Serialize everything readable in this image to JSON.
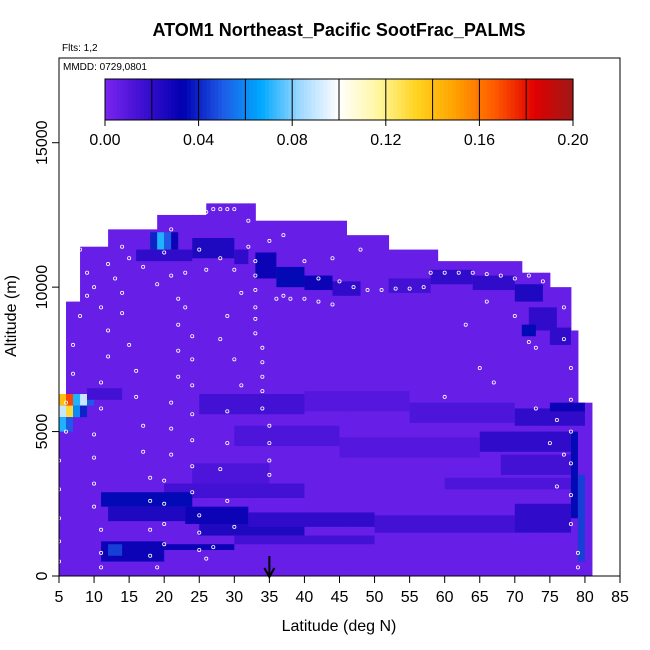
{
  "chart_data": {
    "type": "heatmap",
    "title": "ATOM1 Northeast_Pacific SootFrac_PALMS",
    "flights_label": "Flts: 1,2",
    "date_label": "MMDD: 0729,0801",
    "xlabel": "Latitude (deg N)",
    "ylabel": "Altitude (m)",
    "xlim": [
      5,
      85
    ],
    "ylim": [
      0,
      17500
    ],
    "x_ticks": [
      5,
      10,
      15,
      20,
      25,
      30,
      35,
      40,
      45,
      50,
      55,
      60,
      65,
      70,
      75,
      80,
      85
    ],
    "y_ticks": [
      0,
      5000,
      10000,
      15000
    ],
    "colorbar": {
      "range": [
        0,
        0.2
      ],
      "tick_values": [
        0,
        0.04,
        0.08,
        0.12,
        0.16,
        0.2
      ],
      "tick_labels": [
        "0.00",
        "0.04",
        "0.08",
        "0.12",
        "0.16",
        "0.20"
      ],
      "colors": [
        "#7a24f0",
        "#3c0fd0",
        "#0000b0",
        "#1e5ae6",
        "#00a8ff",
        "#9fd8ff",
        "#ffffff",
        "#fff7a0",
        "#ffd21e",
        "#ffa000",
        "#ff5a00",
        "#e00000",
        "#a01818"
      ],
      "legend_placement": "top"
    },
    "background_value": 0.005,
    "envelope": [
      [
        5,
        0,
        6000
      ],
      [
        6,
        0,
        9500
      ],
      [
        7,
        0,
        9500
      ],
      [
        8,
        0,
        11400
      ],
      [
        11,
        0,
        11400
      ],
      [
        12,
        0,
        12000
      ],
      [
        18,
        0,
        12000
      ],
      [
        19,
        0,
        12500
      ],
      [
        24,
        0,
        12500
      ],
      [
        25,
        0,
        12500
      ],
      [
        26,
        0,
        12900
      ],
      [
        32,
        0,
        12900
      ],
      [
        33,
        0,
        12300
      ],
      [
        45,
        0,
        12300
      ],
      [
        46,
        0,
        11800
      ],
      [
        51,
        0,
        11800
      ],
      [
        52,
        0,
        11300
      ],
      [
        58,
        0,
        11300
      ],
      [
        59,
        0,
        10900
      ],
      [
        70,
        0,
        10900
      ],
      [
        71,
        0,
        10500
      ],
      [
        74,
        0,
        10500
      ],
      [
        75,
        0,
        10000
      ],
      [
        77,
        0,
        10000
      ],
      [
        78,
        0,
        8500
      ],
      [
        79,
        0,
        6000
      ],
      [
        80,
        0,
        6000
      ]
    ],
    "cells": [
      [
        5,
        6,
        5900,
        6300,
        0.14
      ],
      [
        6,
        7,
        5900,
        6300,
        0.17
      ],
      [
        7,
        8,
        5900,
        6300,
        0.07
      ],
      [
        8,
        9,
        5900,
        6300,
        0.09
      ],
      [
        9,
        10,
        5900,
        6300,
        0.05
      ],
      [
        5,
        6,
        5500,
        5900,
        0.09
      ],
      [
        6,
        7,
        5500,
        5900,
        0.13
      ],
      [
        7,
        8,
        5500,
        5900,
        0.06
      ],
      [
        8,
        9,
        5500,
        5900,
        0.04
      ],
      [
        5,
        6,
        5000,
        5500,
        0.07
      ],
      [
        6,
        7,
        5000,
        5500,
        0.05
      ],
      [
        18,
        19,
        11300,
        11900,
        0.04
      ],
      [
        19,
        20,
        11300,
        11900,
        0.07
      ],
      [
        20,
        21,
        11300,
        11900,
        0.05
      ],
      [
        21,
        22,
        11300,
        11900,
        0.03
      ],
      [
        16,
        24,
        10900,
        11300,
        0.02
      ],
      [
        24,
        30,
        11000,
        11700,
        0.025
      ],
      [
        30,
        32,
        10800,
        11300,
        0.02
      ],
      [
        33,
        36,
        10300,
        11200,
        0.03
      ],
      [
        36,
        40,
        10000,
        10700,
        0.035
      ],
      [
        40,
        44,
        9900,
        10400,
        0.03
      ],
      [
        44,
        48,
        9700,
        10200,
        0.02
      ],
      [
        52,
        58,
        9800,
        10300,
        0.015
      ],
      [
        58,
        64,
        10100,
        10600,
        0.02
      ],
      [
        64,
        70,
        9900,
        10400,
        0.02
      ],
      [
        70,
        74,
        9500,
        10100,
        0.025
      ],
      [
        72,
        76,
        8500,
        9300,
        0.02
      ],
      [
        71,
        73,
        8300,
        8700,
        0.035
      ],
      [
        75,
        78,
        8000,
        8600,
        0.02
      ],
      [
        9,
        14,
        6100,
        6500,
        0.015
      ],
      [
        25,
        40,
        5600,
        6300,
        0.015
      ],
      [
        40,
        55,
        5700,
        6400,
        0.01
      ],
      [
        55,
        70,
        5300,
        6000,
        0.012
      ],
      [
        70,
        80,
        5200,
        5800,
        0.02
      ],
      [
        75,
        80,
        5700,
        6000,
        0.03
      ],
      [
        30,
        45,
        4500,
        5200,
        0.012
      ],
      [
        45,
        65,
        4100,
        4800,
        0.01
      ],
      [
        65,
        78,
        4300,
        5000,
        0.02
      ],
      [
        68,
        78,
        3500,
        4200,
        0.015
      ],
      [
        24,
        35,
        3200,
        3900,
        0.012
      ],
      [
        20,
        40,
        2700,
        3200,
        0.015
      ],
      [
        60,
        78,
        3000,
        3400,
        0.012
      ],
      [
        11,
        24,
        2400,
        2900,
        0.035
      ],
      [
        12,
        23,
        1900,
        2400,
        0.025
      ],
      [
        23,
        32,
        1800,
        2400,
        0.03
      ],
      [
        25,
        40,
        1400,
        1800,
        0.025
      ],
      [
        32,
        50,
        1700,
        2200,
        0.02
      ],
      [
        50,
        70,
        1500,
        2100,
        0.015
      ],
      [
        70,
        78,
        1500,
        2500,
        0.02
      ],
      [
        11,
        20,
        500,
        1200,
        0.03
      ],
      [
        12,
        14,
        700,
        1100,
        0.045
      ],
      [
        20,
        30,
        900,
        1100,
        0.03
      ],
      [
        30,
        50,
        1100,
        1400,
        0.015
      ],
      [
        78,
        79,
        2000,
        5000,
        0.035
      ],
      [
        79,
        80,
        500,
        3500,
        0.045
      ]
    ],
    "points": [
      [
        5,
        500
      ],
      [
        5,
        1200
      ],
      [
        5,
        2000
      ],
      [
        5,
        3000
      ],
      [
        5,
        4000
      ],
      [
        6,
        5000
      ],
      [
        6,
        6000
      ],
      [
        7,
        7000
      ],
      [
        7,
        8000
      ],
      [
        8,
        9000
      ],
      [
        9,
        9700
      ],
      [
        9,
        10500
      ],
      [
        8,
        11300
      ],
      [
        10,
        10000
      ],
      [
        11,
        9300
      ],
      [
        12,
        8500
      ],
      [
        12,
        7600
      ],
      [
        11,
        6700
      ],
      [
        11,
        5800
      ],
      [
        10,
        4900
      ],
      [
        10,
        4100
      ],
      [
        10,
        3200
      ],
      [
        10,
        2400
      ],
      [
        11,
        1600
      ],
      [
        11,
        800
      ],
      [
        11,
        300
      ],
      [
        12,
        10800
      ],
      [
        13,
        10300
      ],
      [
        14,
        9800
      ],
      [
        14,
        9100
      ],
      [
        15,
        8000
      ],
      [
        16,
        7100
      ],
      [
        16,
        6200
      ],
      [
        17,
        5200
      ],
      [
        17,
        4300
      ],
      [
        18,
        3400
      ],
      [
        18,
        2600
      ],
      [
        18,
        1600
      ],
      [
        18,
        700
      ],
      [
        19,
        300
      ],
      [
        20,
        11200
      ],
      [
        21,
        12000
      ],
      [
        21,
        10400
      ],
      [
        22,
        9600
      ],
      [
        22,
        8700
      ],
      [
        22,
        7800
      ],
      [
        22,
        6900
      ],
      [
        21,
        6000
      ],
      [
        21,
        5100
      ],
      [
        21,
        4200
      ],
      [
        20,
        3300
      ],
      [
        20,
        2500
      ],
      [
        20,
        1800
      ],
      [
        20,
        1100
      ],
      [
        23,
        9300
      ],
      [
        24,
        8300
      ],
      [
        24,
        7500
      ],
      [
        24,
        6600
      ],
      [
        24,
        5600
      ],
      [
        24,
        4700
      ],
      [
        24,
        3800
      ],
      [
        24,
        2900
      ],
      [
        25,
        2100
      ],
      [
        25,
        1500
      ],
      [
        25,
        900
      ],
      [
        26,
        12600
      ],
      [
        27,
        12700
      ],
      [
        28,
        12700
      ],
      [
        29,
        12700
      ],
      [
        30,
        12700
      ],
      [
        32,
        12300
      ],
      [
        32,
        11400
      ],
      [
        33,
        10900
      ],
      [
        33,
        10400
      ],
      [
        33,
        9900
      ],
      [
        33,
        9300
      ],
      [
        33,
        8900
      ],
      [
        33,
        8400
      ],
      [
        34,
        7900
      ],
      [
        34,
        7400
      ],
      [
        34,
        6900
      ],
      [
        34,
        6400
      ],
      [
        34,
        5800
      ],
      [
        35,
        5200
      ],
      [
        35,
        4600
      ],
      [
        35,
        4000
      ],
      [
        35,
        3500
      ],
      [
        36,
        9600
      ],
      [
        37,
        9700
      ],
      [
        38,
        9600
      ],
      [
        40,
        9600
      ],
      [
        42,
        9500
      ],
      [
        44,
        9400
      ],
      [
        45,
        10200
      ],
      [
        47,
        10000
      ],
      [
        49,
        9900
      ],
      [
        51,
        9900
      ],
      [
        53,
        9950
      ],
      [
        55,
        9950
      ],
      [
        57,
        10000
      ],
      [
        58,
        10500
      ],
      [
        60,
        10500
      ],
      [
        62,
        10500
      ],
      [
        64,
        10500
      ],
      [
        66,
        10450
      ],
      [
        68,
        10400
      ],
      [
        70,
        10300
      ],
      [
        72,
        10400
      ],
      [
        74,
        10200
      ],
      [
        76,
        10100
      ],
      [
        77,
        9300
      ],
      [
        77,
        8200
      ],
      [
        78,
        7200
      ],
      [
        78,
        6100
      ],
      [
        78,
        5000
      ],
      [
        78,
        3900
      ],
      [
        78,
        2800
      ],
      [
        78,
        1800
      ],
      [
        79,
        800
      ],
      [
        79,
        300
      ],
      [
        63,
        8700
      ],
      [
        66,
        9500
      ],
      [
        70,
        9000
      ],
      [
        72,
        8100
      ],
      [
        73,
        7900
      ],
      [
        65,
        7200
      ],
      [
        60,
        6200
      ],
      [
        67,
        6700
      ],
      [
        73,
        5800
      ],
      [
        76,
        5400
      ],
      [
        77,
        4200
      ],
      [
        76,
        3100
      ],
      [
        75,
        4600
      ],
      [
        28,
        11000
      ],
      [
        30,
        10600
      ],
      [
        31,
        9800
      ],
      [
        29,
        9000
      ],
      [
        28,
        8200
      ],
      [
        30,
        7500
      ],
      [
        31,
        6600
      ],
      [
        29,
        5700
      ],
      [
        29,
        4600
      ],
      [
        28,
        3700
      ],
      [
        29,
        2600
      ],
      [
        30,
        1700
      ],
      [
        27,
        1000
      ],
      [
        26,
        600
      ],
      [
        14,
        11400
      ],
      [
        15,
        11000
      ],
      [
        17,
        10700
      ],
      [
        19,
        10100
      ],
      [
        23,
        10500
      ],
      [
        25,
        11300
      ],
      [
        26,
        10600
      ],
      [
        35,
        11600
      ],
      [
        37,
        11800
      ],
      [
        40,
        10900
      ],
      [
        42,
        10300
      ],
      [
        44,
        11000
      ],
      [
        48,
        11300
      ]
    ],
    "latitude_marker": 35
  }
}
